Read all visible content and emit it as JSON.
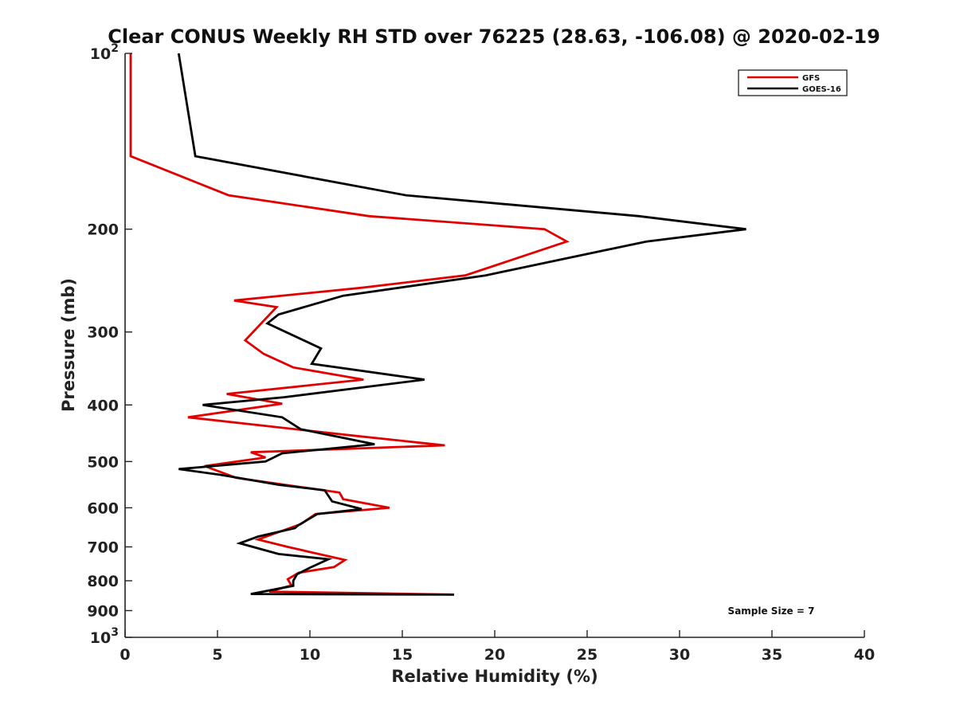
{
  "chart_data": {
    "type": "line",
    "title": "Clear CONUS Weekly RH STD over 76225 (28.63, -106.08) @ 2020-02-19",
    "xlabel": "Relative Humidity (%)",
    "ylabel": "Pressure (mb)",
    "xlim": [
      0,
      40
    ],
    "ylim": [
      100,
      1000
    ],
    "y_scale": "log",
    "y_reversed": true,
    "grid": false,
    "legend_position": "top-right",
    "x_ticks": [
      0,
      5,
      10,
      15,
      20,
      25,
      30,
      35,
      40
    ],
    "y_ticks": [
      {
        "value": 100,
        "base": "10",
        "exp": "2"
      },
      {
        "value": 200,
        "label": "200"
      },
      {
        "value": 300,
        "label": "300"
      },
      {
        "value": 400,
        "label": "400"
      },
      {
        "value": 500,
        "label": "500"
      },
      {
        "value": 600,
        "label": "600"
      },
      {
        "value": 700,
        "label": "700"
      },
      {
        "value": 800,
        "label": "800"
      },
      {
        "value": 900,
        "label": "900"
      },
      {
        "value": 1000,
        "base": "10",
        "exp": "3"
      }
    ],
    "series": [
      {
        "name": "GFS",
        "color": "#e00000",
        "points": [
          [
            0.3,
            100
          ],
          [
            0.3,
            150
          ],
          [
            5.6,
            175
          ],
          [
            13.2,
            190
          ],
          [
            22.7,
            200
          ],
          [
            23.9,
            210
          ],
          [
            18.4,
            240
          ],
          [
            12.8,
            252
          ],
          [
            5.9,
            265
          ],
          [
            8.2,
            272
          ],
          [
            6.5,
            310
          ],
          [
            7.5,
            327
          ],
          [
            9.1,
            345
          ],
          [
            12.9,
            362
          ],
          [
            5.5,
            383
          ],
          [
            8.5,
            398
          ],
          [
            3.4,
            420
          ],
          [
            12.5,
            452
          ],
          [
            17.3,
            469
          ],
          [
            6.8,
            482
          ],
          [
            7.6,
            492
          ],
          [
            4.3,
            509
          ],
          [
            6.0,
            533
          ],
          [
            11.6,
            565
          ],
          [
            11.8,
            580
          ],
          [
            14.3,
            600
          ],
          [
            10.3,
            615
          ],
          [
            9.5,
            640
          ],
          [
            7.2,
            680
          ],
          [
            8.8,
            700
          ],
          [
            11.9,
            737
          ],
          [
            11.3,
            758
          ],
          [
            9.4,
            775
          ],
          [
            8.8,
            795
          ],
          [
            9.0,
            815
          ],
          [
            7.8,
            835
          ],
          [
            17.8,
            845
          ]
        ]
      },
      {
        "name": "GOES-16",
        "color": "#000000",
        "points": [
          [
            2.9,
            100
          ],
          [
            3.8,
            150
          ],
          [
            15.2,
            175
          ],
          [
            27.8,
            190
          ],
          [
            33.6,
            200
          ],
          [
            28.2,
            210
          ],
          [
            19.5,
            240
          ],
          [
            11.8,
            260
          ],
          [
            8.3,
            280
          ],
          [
            7.7,
            290
          ],
          [
            10.6,
            320
          ],
          [
            10.1,
            340
          ],
          [
            16.2,
            362
          ],
          [
            8.6,
            388
          ],
          [
            4.2,
            400
          ],
          [
            8.5,
            420
          ],
          [
            9.5,
            440
          ],
          [
            13.5,
            467
          ],
          [
            8.5,
            484
          ],
          [
            7.6,
            500
          ],
          [
            2.9,
            515
          ],
          [
            5.2,
            527
          ],
          [
            8.3,
            548
          ],
          [
            10.8,
            560
          ],
          [
            11.2,
            585
          ],
          [
            12.8,
            603
          ],
          [
            10.4,
            615
          ],
          [
            9.3,
            645
          ],
          [
            9.2,
            650
          ],
          [
            7.2,
            672
          ],
          [
            6.2,
            690
          ],
          [
            8.3,
            720
          ],
          [
            11.0,
            735
          ],
          [
            10.0,
            760
          ],
          [
            9.3,
            780
          ],
          [
            9.1,
            800
          ],
          [
            9.1,
            816
          ],
          [
            6.8,
            843
          ],
          [
            17.8,
            845
          ]
        ]
      }
    ],
    "annotation": "Sample Size = 7"
  }
}
